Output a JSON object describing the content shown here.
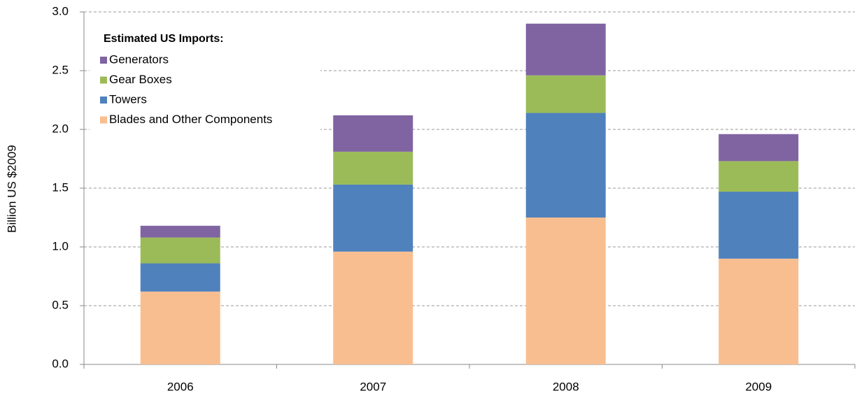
{
  "chart_data": {
    "type": "stacked_bar",
    "y_label": "Billion US $2009",
    "legend_title": "Estimated US Imports:",
    "categories": [
      "2006",
      "2007",
      "2008",
      "2009"
    ],
    "series": [
      {
        "name": "Blades and Other Components",
        "color": "#f9be8f",
        "values": [
          0.62,
          0.96,
          1.25,
          0.9
        ]
      },
      {
        "name": "Towers",
        "color": "#4f81bd",
        "values": [
          0.24,
          0.57,
          0.89,
          0.57
        ]
      },
      {
        "name": "Gear Boxes",
        "color": "#9bbb59",
        "values": [
          0.22,
          0.28,
          0.32,
          0.26
        ]
      },
      {
        "name": "Generators",
        "color": "#8064a2",
        "values": [
          0.1,
          0.31,
          0.44,
          0.23
        ]
      }
    ],
    "ylim": [
      0,
      3
    ],
    "yticks": [
      {
        "value": 0,
        "label": "0.0"
      },
      0.5,
      {
        "value": 1,
        "label": "1.0"
      },
      1.5,
      {
        "value": 2,
        "label": "2.0"
      },
      2.5,
      {
        "value": 3,
        "label": "3.0"
      }
    ],
    "grid": true,
    "legend": "upper left"
  }
}
